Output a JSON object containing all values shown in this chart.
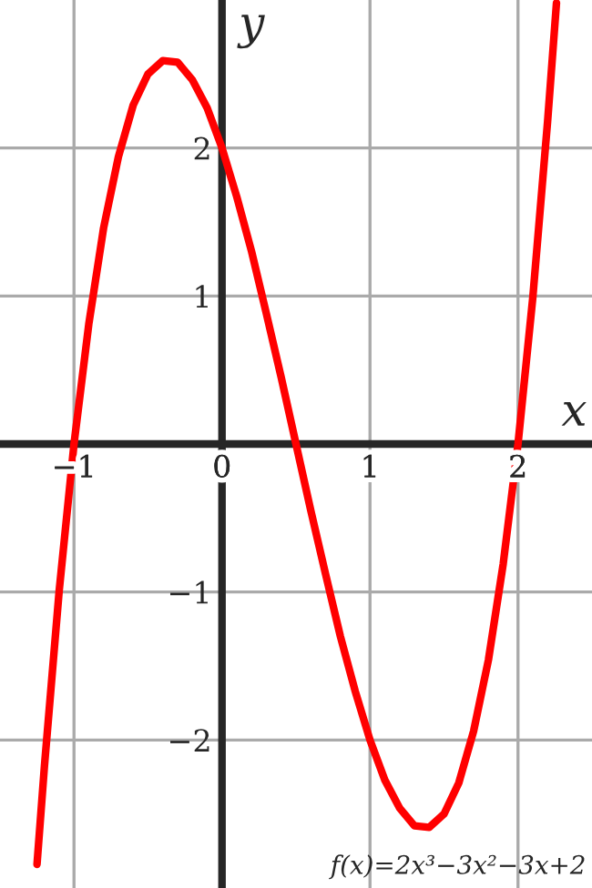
{
  "chart_data": {
    "type": "line",
    "xlabel": "x",
    "ylabel": "y",
    "annotations": [
      "f(x)=2x³−3x²−3x+2"
    ],
    "series": [
      {
        "color": "#ff0000",
        "x": [
          -1.25,
          -1.2,
          -1.1,
          -1.0,
          -0.9,
          -0.8,
          -0.7,
          -0.6,
          -0.5,
          -0.4,
          -0.3,
          -0.2,
          -0.1,
          0,
          0.1,
          0.2,
          0.3,
          0.4,
          0.5,
          0.6,
          0.7,
          0.8,
          0.9,
          1.0,
          1.1,
          1.2,
          1.3,
          1.4,
          1.5,
          1.6,
          1.7,
          1.8,
          1.9,
          2.0,
          2.1,
          2.2,
          2.26
        ],
        "values": [
          -2.84,
          -2.18,
          -0.99,
          0,
          0.81,
          1.46,
          1.94,
          2.29,
          2.5,
          2.59,
          2.58,
          2.46,
          2.27,
          2,
          1.67,
          1.3,
          0.88,
          0.45,
          0,
          -0.45,
          -0.88,
          -1.3,
          -1.67,
          -2,
          -2.27,
          -2.46,
          -2.58,
          -2.59,
          -2.5,
          -2.29,
          -1.94,
          -1.46,
          -0.81,
          0,
          0.99,
          2.18,
          2.98
        ]
      }
    ],
    "xlim": [
      -1.5,
      2.5
    ],
    "ylim": [
      -3,
      3
    ],
    "xticks": [
      {
        "value": -1,
        "label": "−1"
      },
      0,
      1,
      2
    ],
    "yticks": [
      {
        "value": -2,
        "label": "−2"
      },
      {
        "value": -1,
        "label": "−1"
      },
      1,
      2
    ],
    "grid": true
  }
}
